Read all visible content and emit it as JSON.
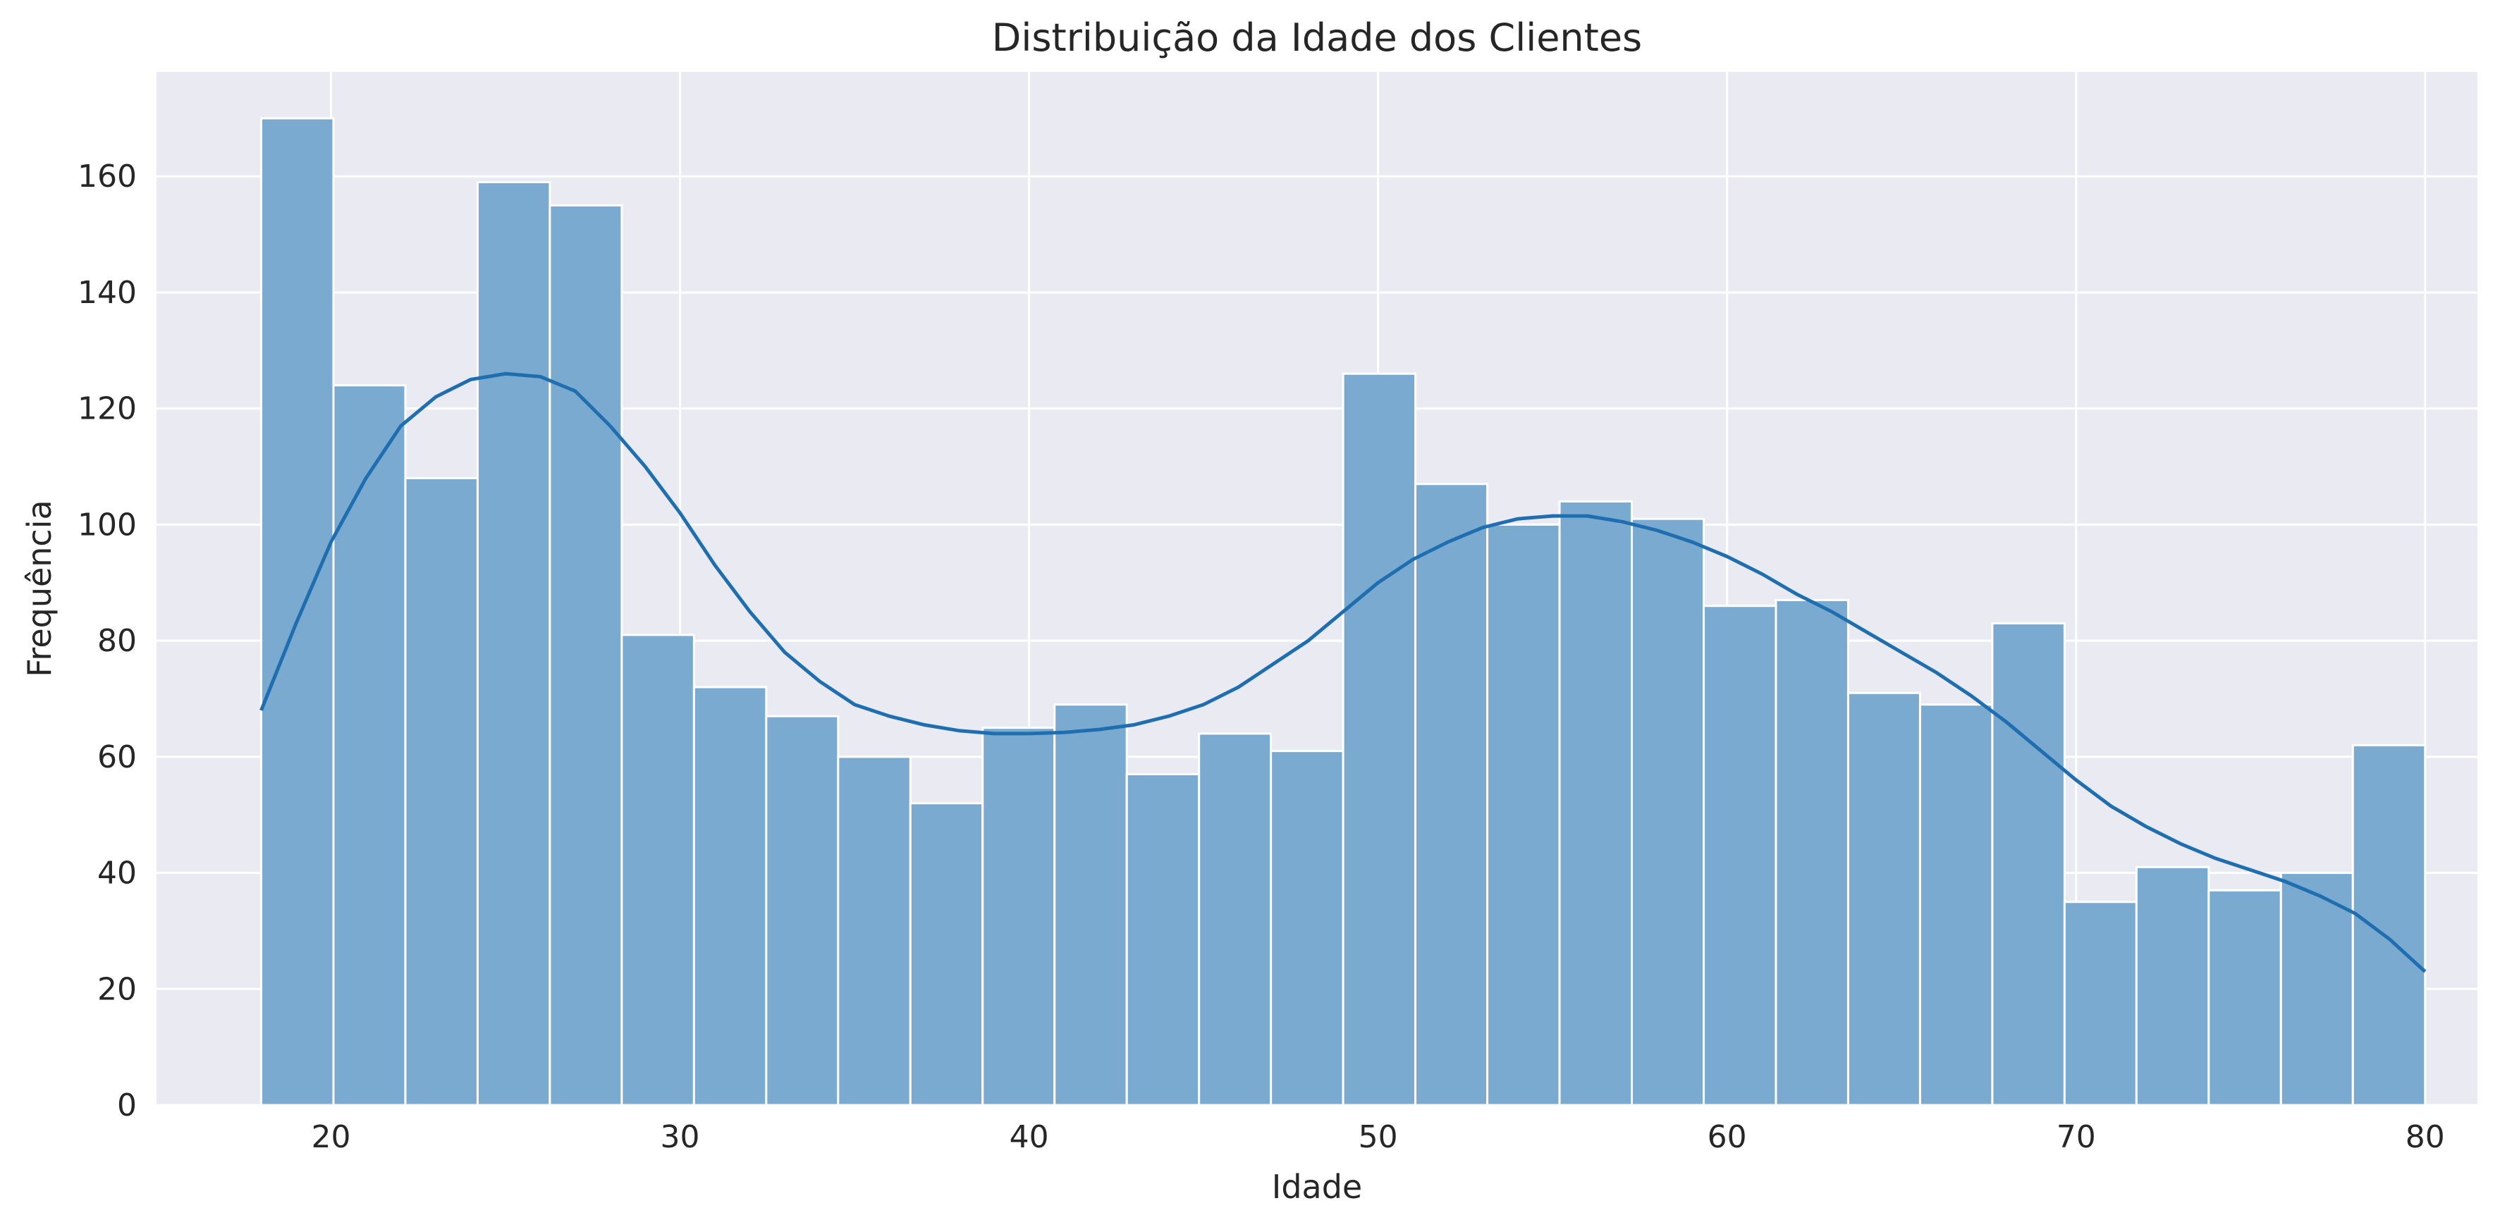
{
  "chart_data": {
    "type": "bar",
    "subtype": "histogram-with-kde",
    "title": "Distribuição da Idade dos Clientes",
    "xlabel": "Idade",
    "ylabel": "Frequência",
    "xlim": [
      15,
      81.5
    ],
    "ylim": [
      0,
      178
    ],
    "xticks": [
      20,
      30,
      40,
      50,
      60,
      70,
      80
    ],
    "yticks": [
      0,
      20,
      40,
      60,
      80,
      100,
      120,
      140,
      160
    ],
    "grid": true,
    "legend": "none",
    "bin_edges": [
      18.0,
      20.07,
      22.13,
      24.2,
      26.27,
      28.33,
      30.4,
      32.47,
      34.53,
      36.6,
      38.67,
      40.73,
      42.8,
      44.87,
      46.93,
      49.0,
      51.07,
      53.13,
      55.2,
      57.27,
      59.33,
      61.4,
      63.47,
      65.53,
      67.6,
      69.67,
      71.73,
      73.8,
      75.87,
      77.93,
      80.0
    ],
    "values": [
      170,
      124,
      108,
      159,
      155,
      81,
      72,
      67,
      60,
      52,
      65,
      69,
      57,
      64,
      61,
      126,
      107,
      100,
      104,
      101,
      86,
      87,
      71,
      69,
      83,
      35,
      41,
      37,
      40,
      62
    ],
    "kde": {
      "x": [
        18,
        19,
        20,
        21,
        22,
        23,
        24,
        25,
        26,
        27,
        28,
        29,
        30,
        31,
        32,
        33,
        34,
        35,
        36,
        37,
        38,
        39,
        40,
        41,
        42,
        43,
        44,
        45,
        46,
        47,
        48,
        49,
        50,
        51,
        52,
        53,
        54,
        55,
        56,
        57,
        58,
        59,
        60,
        61,
        62,
        63,
        64,
        65,
        66,
        67,
        68,
        69,
        70,
        71,
        72,
        73,
        74,
        75,
        76,
        77,
        78,
        79,
        80
      ],
      "y": [
        68,
        83,
        97,
        108,
        117,
        122,
        125,
        126,
        125.5,
        123,
        117,
        110,
        102,
        93,
        85,
        78,
        73,
        69,
        67,
        65.5,
        64.5,
        64,
        64,
        64.2,
        64.7,
        65.5,
        67,
        69,
        72,
        76,
        80,
        85,
        90,
        94,
        97,
        99.5,
        101,
        101.5,
        101.5,
        100.5,
        99,
        97,
        94.5,
        91.5,
        88,
        85,
        81.5,
        78,
        74.5,
        70.5,
        66,
        61,
        56,
        51.5,
        48,
        45,
        42.5,
        40.5,
        38.5,
        36,
        33,
        28.5,
        23
      ]
    },
    "colors": {
      "background": "#eaeaf2",
      "grid": "#ffffff",
      "bar_fill": "#7aaad0",
      "bar_edge": "#ffffff",
      "kde_line": "#1f6fb0",
      "text": "#262626"
    }
  }
}
